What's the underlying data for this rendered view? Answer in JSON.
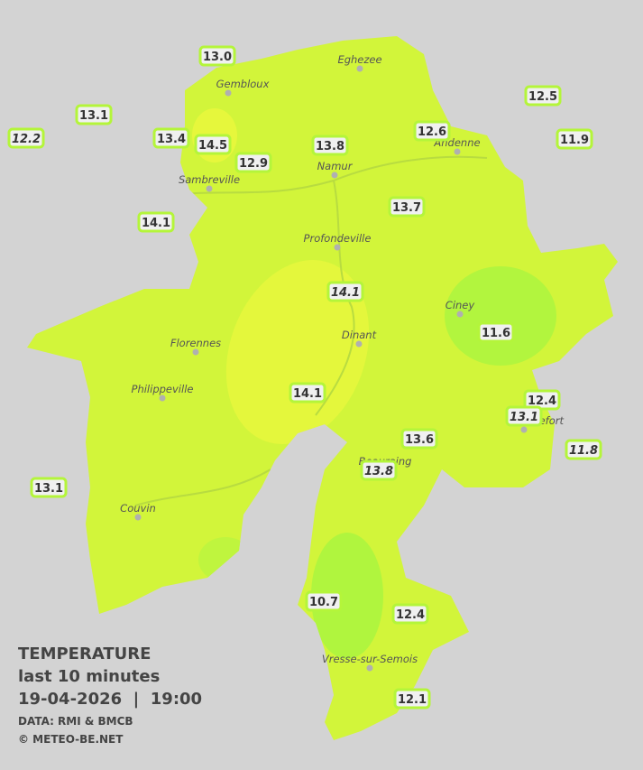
{
  "map": {
    "legend": {
      "title": "TEMPERATURE",
      "subtitle": "last 10 minutes",
      "datetime": "19-04-2026  |  19:00",
      "source": "DATA: RMI & BMCB",
      "copyright": "© METEO-BE.NET"
    },
    "cities": [
      "Eghezee",
      "Gembloux",
      "Andenne",
      "Namur",
      "Sambreville",
      "Profondeville",
      "Ciney",
      "Florennes",
      "Dinant",
      "Philippeville",
      "Rochefort",
      "Beauraing",
      "Couvin",
      "Vresse-sur-Semois"
    ],
    "stations": [
      "13.0",
      "13.1",
      "12.2",
      "13.4",
      "14.5",
      "12.9",
      "13.8",
      "12.6",
      "12.5",
      "11.9",
      "14.1",
      "13.7",
      "14.1",
      "11.6",
      "14.1",
      "12.4",
      "13.1",
      "11.8",
      "13.6",
      "13.8",
      "13.1",
      "10.7",
      "12.4",
      "12.1"
    ]
  }
}
